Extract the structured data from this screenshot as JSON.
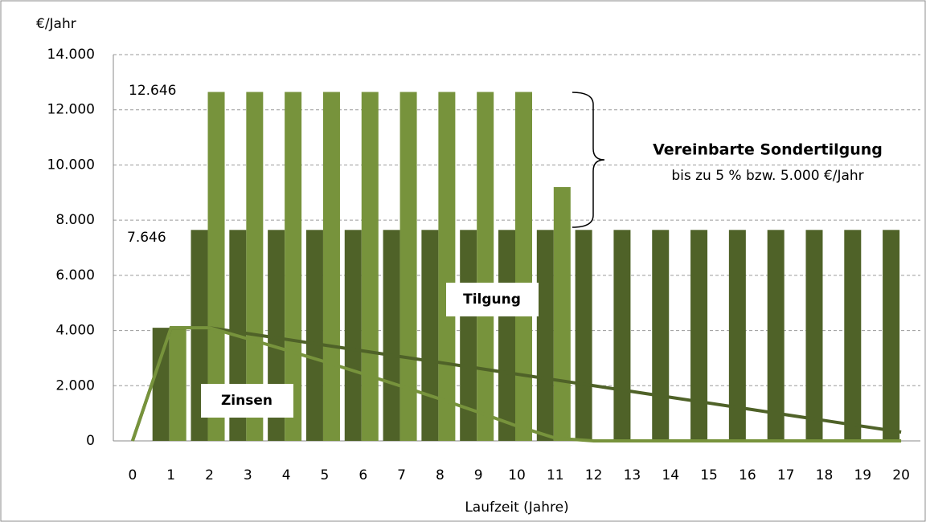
{
  "chart_data": {
    "type": "bar",
    "y_label": "€/Jahr",
    "x_label": "Laufzeit (Jahre)",
    "categories": [
      "0",
      "1",
      "2",
      "3",
      "4",
      "5",
      "6",
      "7",
      "8",
      "9",
      "10",
      "11",
      "12",
      "13",
      "14",
      "15",
      "16",
      "17",
      "18",
      "19",
      "20"
    ],
    "series": [
      {
        "color": "#4f6228",
        "values": [
          null,
          4100,
          7646,
          7646,
          7646,
          7646,
          7646,
          7646,
          7646,
          7646,
          7646,
          7646,
          7646,
          7646,
          7646,
          7646,
          7646,
          7646,
          7646,
          7646,
          7646
        ]
      },
      {
        "color": "#77933c",
        "values": [
          null,
          4100,
          12646,
          12646,
          12646,
          12646,
          12646,
          12646,
          12646,
          12646,
          12646,
          9200,
          null,
          null,
          null,
          null,
          null,
          null,
          null,
          null,
          null
        ]
      }
    ],
    "lines": [
      {
        "color": "#4f6228",
        "values": [
          0,
          4100,
          4100,
          3890,
          3680,
          3470,
          3260,
          3050,
          2840,
          2630,
          2420,
          2210,
          2000,
          1790,
          1580,
          1370,
          1160,
          950,
          740,
          530,
          320
        ]
      },
      {
        "color": "#77933c",
        "values": [
          0,
          4100,
          4100,
          3700,
          3290,
          2870,
          2430,
          1980,
          1520,
          1040,
          540,
          100,
          0,
          0,
          0,
          0,
          0,
          0,
          0,
          0,
          0
        ]
      }
    ],
    "annotations": [
      "12.646",
      "7.646",
      "Tilgung",
      "Zinsen",
      "Vereinbarte Sondertilgung",
      "bis zu 5 % bzw. 5.000 €/Jahr"
    ],
    "ylim": [
      0,
      14000
    ],
    "yticks": [
      0,
      {
        "value": 2000,
        "label": "2.000"
      },
      {
        "value": 4000,
        "label": "4.000"
      },
      {
        "value": 6000,
        "label": "6.000"
      },
      {
        "value": 8000,
        "label": "8.000"
      },
      {
        "value": 10000,
        "label": "10.000"
      },
      {
        "value": 12000,
        "label": "12.000"
      },
      {
        "value": 14000,
        "label": "14.000"
      }
    ],
    "grid": true
  }
}
